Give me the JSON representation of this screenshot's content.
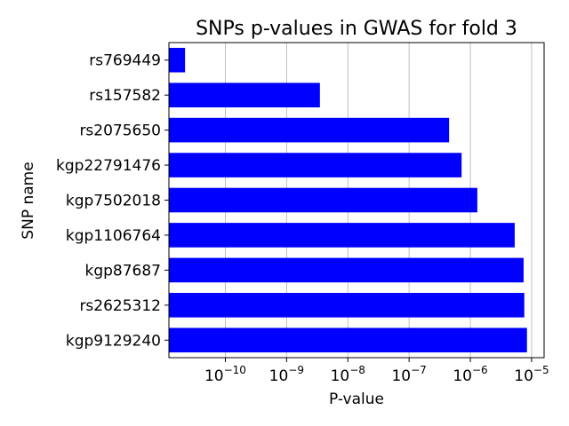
{
  "chart_data": {
    "type": "bar",
    "orientation": "horizontal",
    "title": "SNPs p-values in GWAS for fold 3",
    "xlabel": "P-value",
    "ylabel": "SNP name",
    "x_scale": "log",
    "xlim": [
      1.2e-11,
      1.6e-05
    ],
    "grid": "x-major",
    "bar_color": "#0000ff",
    "categories": [
      "rs769449",
      "rs157582",
      "rs2075650",
      "kgp22791476",
      "kgp7502018",
      "kgp1106764",
      "kgp87687",
      "rs2625312",
      "kgp9129240"
    ],
    "values": [
      2.2e-11,
      3.5e-09,
      4.5e-07,
      7.2e-07,
      1.3e-06,
      5.3e-06,
      7.4e-06,
      7.6e-06,
      8.4e-06
    ],
    "x_ticks": [
      {
        "base": "10",
        "exp": "−10",
        "value": 1e-10
      },
      {
        "base": "10",
        "exp": "−9",
        "value": 1e-09
      },
      {
        "base": "10",
        "exp": "−8",
        "value": 1e-08
      },
      {
        "base": "10",
        "exp": "−7",
        "value": 1e-07
      },
      {
        "base": "10",
        "exp": "−6",
        "value": 1e-06
      },
      {
        "base": "10",
        "exp": "−5",
        "value": 1e-05
      }
    ]
  }
}
